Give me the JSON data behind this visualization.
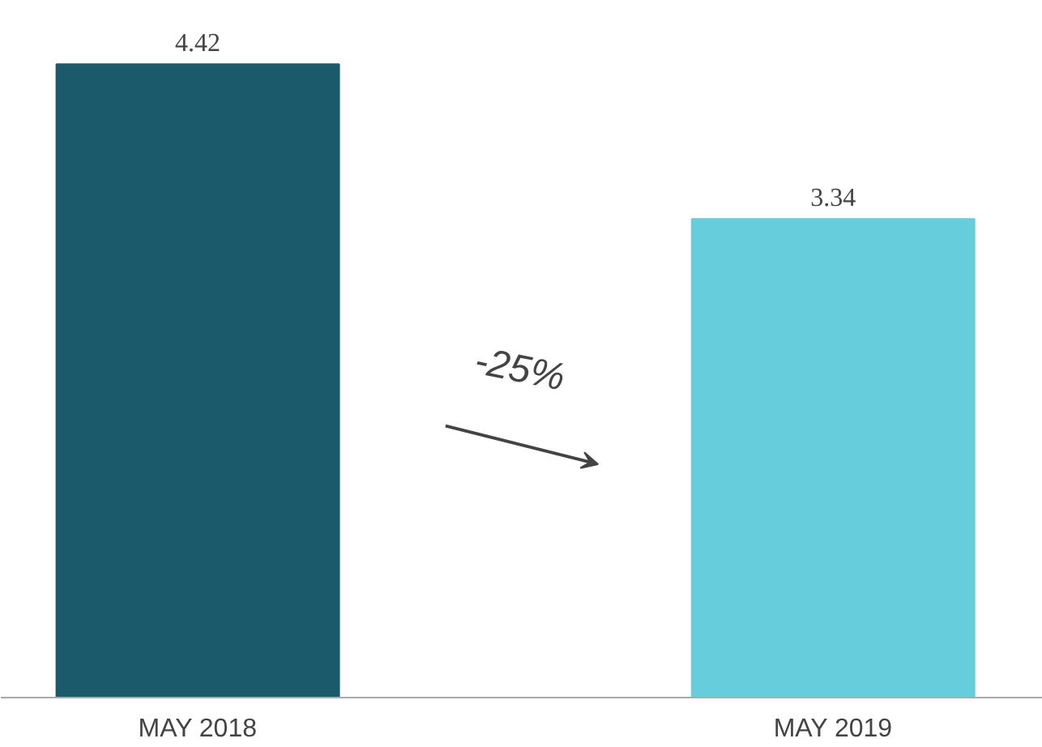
{
  "chart_data": {
    "type": "bar",
    "categories": [
      "MAY 2018",
      "MAY 2019"
    ],
    "values": [
      4.42,
      3.34
    ],
    "colors": [
      "#1b5a6a",
      "#66cddc"
    ],
    "data_labels": true,
    "annotations": [
      "-25%"
    ]
  }
}
